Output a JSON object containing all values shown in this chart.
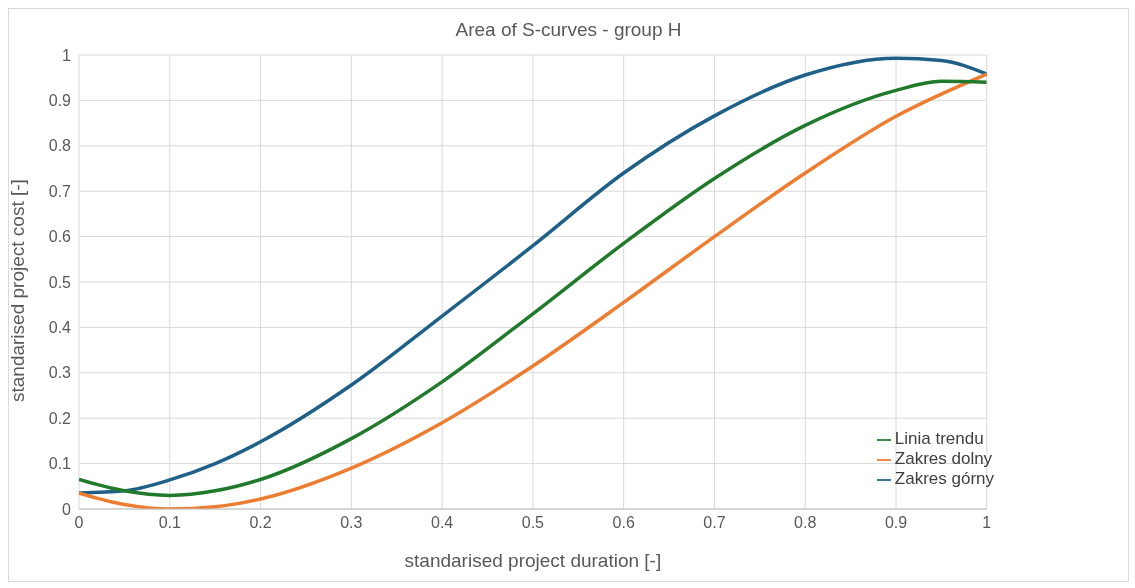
{
  "chart_data": {
    "type": "line",
    "title": "Area of S-curves - group H",
    "xlabel": "standarised project duration [-]",
    "ylabel": "standarised project cost [-]",
    "xlim": [
      0,
      1
    ],
    "xticks": [
      0,
      0.1,
      0.2,
      0.3,
      0.4,
      0.5,
      0.6,
      0.7,
      0.8,
      0.9,
      1
    ],
    "ylim": [
      0,
      1
    ],
    "yticks": [
      0,
      0.1,
      0.2,
      0.3,
      0.4,
      0.5,
      0.6,
      0.7,
      0.8,
      0.9,
      1
    ],
    "grid": true,
    "legend": "bottom right",
    "marker": "none",
    "line_style": "solid",
    "series": [
      {
        "name": "Zakres górny",
        "color": "#1f6089",
        "x": [
          0,
          0.05,
          0.1,
          0.15,
          0.2,
          0.3,
          0.4,
          0.5,
          0.6,
          0.7,
          0.8,
          0.9,
          0.95,
          1
        ],
        "values": [
          0.035,
          0.04,
          0.064,
          0.1,
          0.148,
          0.273,
          0.425,
          0.58,
          0.74,
          0.866,
          0.956,
          0.993,
          0.988,
          0.958
        ]
      },
      {
        "name": "Zakres dolny",
        "color": "#ed7d31",
        "x": [
          0,
          0.05,
          0.1,
          0.15,
          0.2,
          0.3,
          0.4,
          0.5,
          0.6,
          0.7,
          0.8,
          0.9,
          1
        ],
        "values": [
          0.035,
          0.01,
          0.0,
          0.005,
          0.022,
          0.09,
          0.19,
          0.315,
          0.455,
          0.6,
          0.74,
          0.865,
          0.958
        ]
      },
      {
        "name": "Linia trendu",
        "color": "#217a2b",
        "x": [
          0,
          0.05,
          0.1,
          0.15,
          0.2,
          0.3,
          0.4,
          0.5,
          0.6,
          0.7,
          0.8,
          0.9,
          0.95,
          1
        ],
        "values": [
          0.065,
          0.04,
          0.03,
          0.04,
          0.065,
          0.155,
          0.28,
          0.43,
          0.585,
          0.728,
          0.845,
          0.922,
          0.942,
          0.94
        ]
      }
    ]
  }
}
